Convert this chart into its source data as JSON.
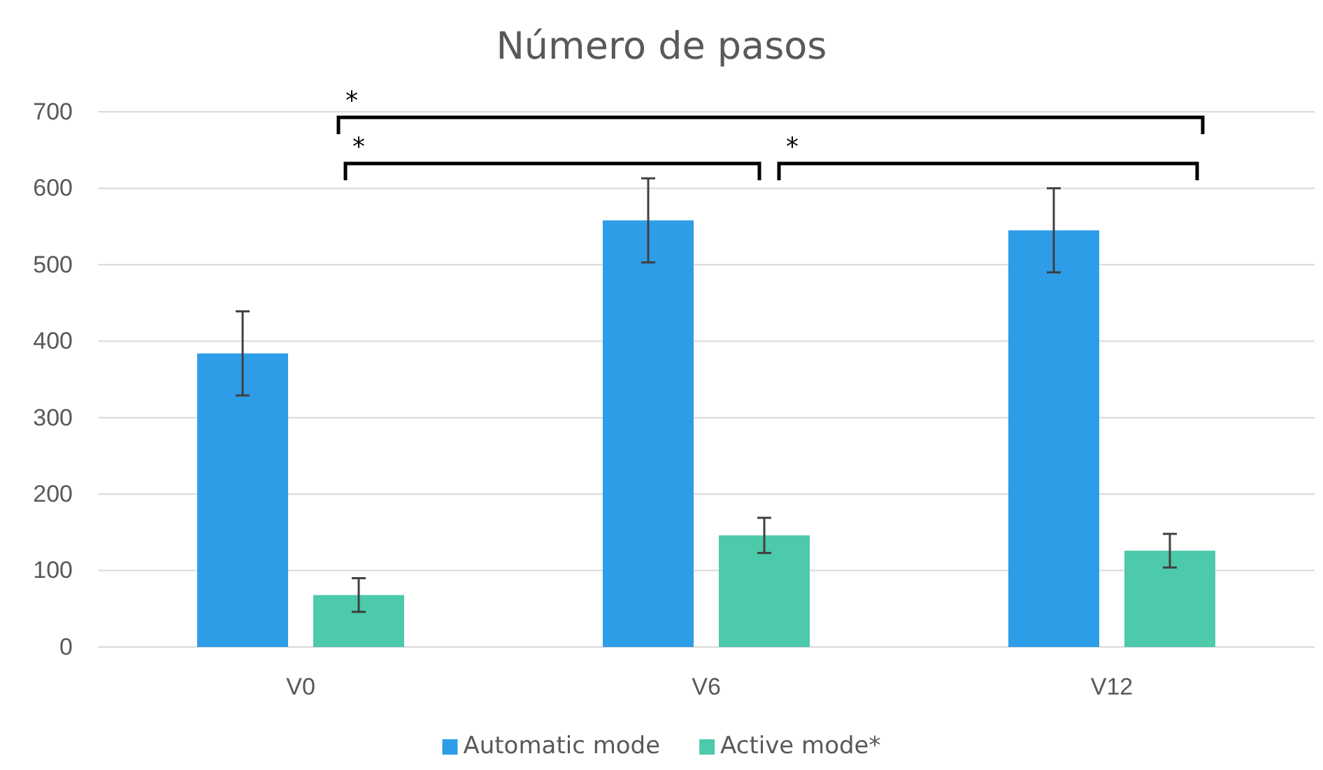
{
  "chart_data": {
    "type": "bar",
    "title": "Número de pasos",
    "categories": [
      "V0",
      "V6",
      "V12"
    ],
    "series": [
      {
        "name": "Automatic mode",
        "color": "#2e9de8",
        "values": [
          384,
          558,
          545
        ],
        "errors": [
          55,
          55,
          55
        ]
      },
      {
        "name": "Active mode*",
        "color": "#4dc9ab",
        "values": [
          68,
          146,
          126
        ],
        "errors": [
          22,
          23,
          22
        ]
      }
    ],
    "ylim": [
      0,
      700
    ],
    "yticks": [
      0,
      100,
      200,
      300,
      400,
      500,
      600,
      700
    ],
    "grid": "y",
    "legend": "bottom",
    "annotations": [
      "*",
      "*",
      "*"
    ]
  }
}
